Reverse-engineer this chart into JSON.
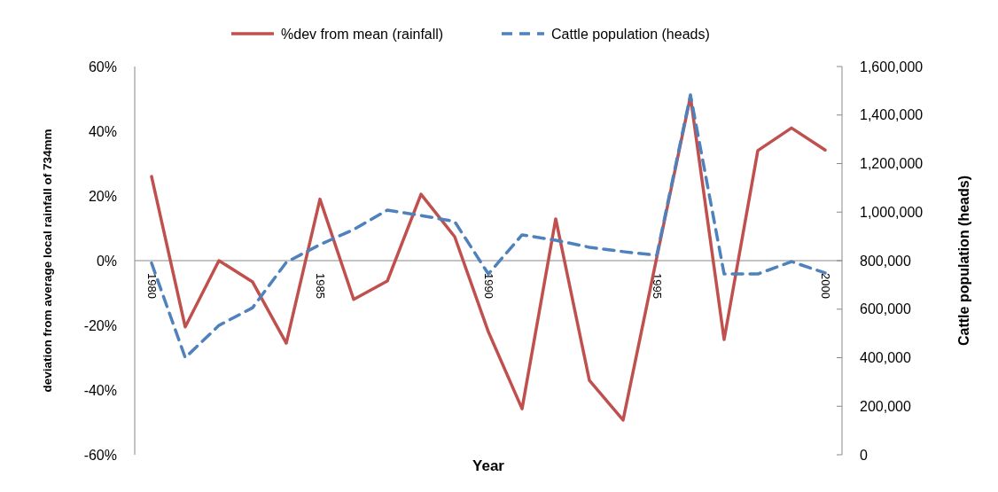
{
  "chart_data": {
    "type": "line",
    "xlabel": "Year",
    "ylabel": "deviation from average local rainfall of 734mm",
    "y2label": "Cattle population (heads)",
    "x": [
      1980,
      1981,
      1982,
      1983,
      1984,
      1985,
      1986,
      1987,
      1988,
      1989,
      1990,
      1991,
      1992,
      1993,
      1994,
      1995,
      1996,
      1997,
      1998,
      1999,
      2000
    ],
    "xlim": [
      1979.5,
      2000.5
    ],
    "xticks": [
      1980,
      1985,
      1990,
      1995,
      2000
    ],
    "ylim": [
      -60,
      60
    ],
    "yticks": [
      {
        "value": -60,
        "label": "-60%"
      },
      {
        "value": -40,
        "label": "-40%"
      },
      {
        "value": -20,
        "label": "-20%"
      },
      {
        "value": 0,
        "label": "0%"
      },
      {
        "value": 20,
        "label": "20%"
      },
      {
        "value": 40,
        "label": "40%"
      },
      {
        "value": 60,
        "label": "60%"
      }
    ],
    "y2lim": [
      0,
      1600000
    ],
    "y2ticks": [
      0,
      {
        "value": 200000,
        "label": "200,000"
      },
      {
        "value": 400000,
        "label": "400,000"
      },
      {
        "value": 600000,
        "label": "600,000"
      },
      {
        "value": 800000,
        "label": "800,000"
      },
      {
        "value": 1000000,
        "label": "1,000,000"
      },
      {
        "value": 1200000,
        "label": "1,200,000"
      },
      {
        "value": 1400000,
        "label": "1,400,000"
      },
      {
        "value": 1600000,
        "label": "1,600,000"
      }
    ],
    "series": [
      {
        "name": "%dev from mean (rainfall)",
        "color": "#c0504d",
        "line_style": "solid",
        "values": [
          26,
          -20.5,
          0,
          -6.6,
          -25.5,
          19,
          -12,
          -6.3,
          20.5,
          7.4,
          -22,
          -45.8,
          12.9,
          -37,
          -49.3,
          1,
          50.7,
          -24.4,
          34,
          41,
          34.2
        ]
      },
      {
        "name": "Cattle population (heads)",
        "color": "#4f81bd",
        "line_style": "dashed",
        "axis": "y2",
        "values": [
          790000,
          400000,
          533000,
          606000,
          793000,
          866000,
          928000,
          1008000,
          986000,
          961000,
          745000,
          906000,
          884000,
          855000,
          837000,
          822000,
          1483000,
          745000,
          745000,
          796000,
          749000
        ]
      }
    ],
    "legend": "top",
    "grid": false,
    "marker": "none"
  }
}
